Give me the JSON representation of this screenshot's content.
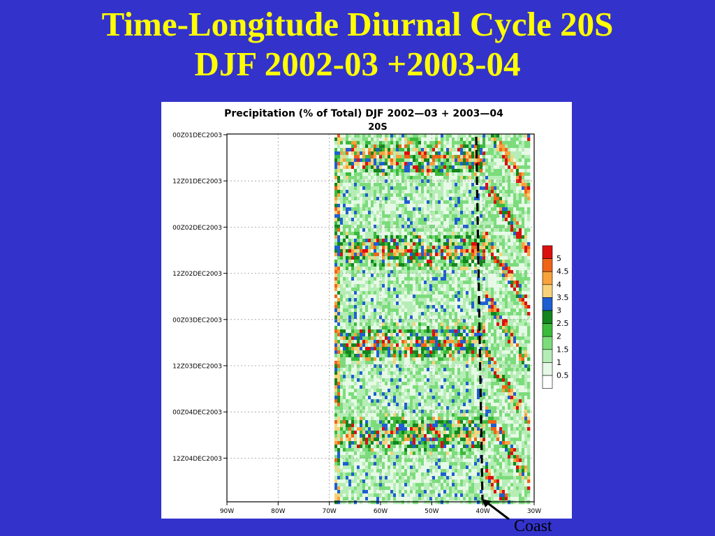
{
  "slide": {
    "title_line1": "Time-Longitude Diurnal Cycle 20S",
    "title_line2": "DJF 2002-03 +2003-04"
  },
  "annotation": {
    "coast_label": "Coast"
  },
  "colors": {
    "background": "#3333cc",
    "title": "#ffff00"
  },
  "chart_data": {
    "type": "heatmap",
    "title": "Precipitation (% of Total) DJF 2002—03 + 2003—04",
    "subtitle": "20S",
    "x_ticks": [
      "90W",
      "80W",
      "70W",
      "60W",
      "50W",
      "40W",
      "30W"
    ],
    "y_ticks": [
      "00Z01DEC2003",
      "12Z01DEC2003",
      "00Z02DEC2003",
      "12Z02DEC2003",
      "00Z03DEC2003",
      "12Z03DEC2003",
      "00Z04DEC2003",
      "12Z04DEC2003"
    ],
    "xlim": [
      "90W",
      "30W"
    ],
    "data_longitude_range": [
      "69W",
      "31W"
    ],
    "coastline_longitude": "40W",
    "grid": true,
    "legend_placement": "right",
    "colorbar": {
      "levels": [
        "0.5",
        "1",
        "1.5",
        "2",
        "2.5",
        "3",
        "3.5",
        "4",
        "4.5",
        "5"
      ],
      "colors": [
        "#ffffff",
        "#e6f9e6",
        "#b6edb6",
        "#7cdc7c",
        "#3cba3c",
        "#14851e",
        "#1e5fd2",
        "#f7d27a",
        "#f7a23c",
        "#ef6418",
        "#dc0f0f"
      ]
    }
  }
}
